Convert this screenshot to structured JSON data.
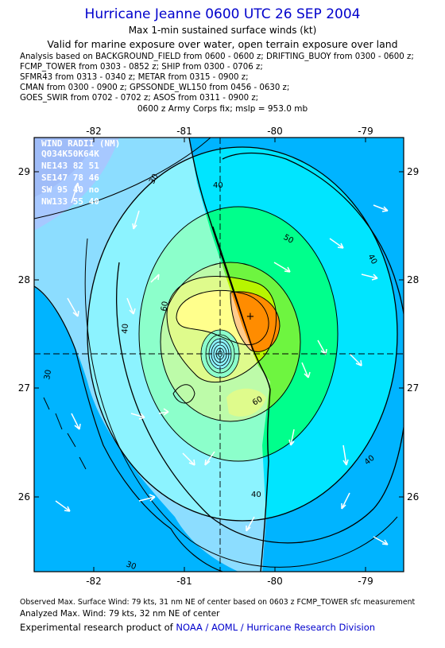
{
  "header": {
    "title": "Hurricane Jeanne 0600 UTC 26 SEP 2004",
    "subtitle": "Max 1-min sustained surface winds (kt)",
    "validity": "Valid for marine exposure over water, open terrain exposure over land"
  },
  "analysis_lines": [
    "Analysis based on  BACKGROUND_FIELD from 0600 - 0600 z;  DRIFTING_BUOY from 0300 - 0600 z;",
    "FCMP_TOWER from 0303 - 0852 z;  SHIP from 0300 - 0706 z;",
    "SFMR43 from 0313 - 0340 z;  METAR from 0315 - 0900 z;",
    "CMAN from 0300 - 0900 z;  GPSSONDE_WL150 from 0456 - 0630 z;",
    "GOES_SWIR from 0702 - 0702 z;  ASOS from 0311 - 0900 z;"
  ],
  "fix_line": "0600 z Army Corps fix; mslp = 953.0 mb",
  "map": {
    "lon_labels": [
      "-82",
      "-81",
      "-80",
      "-79"
    ],
    "lat_labels": [
      "29",
      "28",
      "27",
      "26"
    ],
    "contour_labels": [
      "30",
      "30",
      "30",
      "40",
      "40",
      "40",
      "40",
      "40",
      "50",
      "60",
      "60"
    ],
    "wind_radii": {
      "title": "WIND RADII (NM)",
      "header": "Q034K50K64K",
      "rows": [
        "NE143 82 51",
        "SE147 78 46",
        "SW 95 40 no",
        "NW133 55 40"
      ]
    },
    "center_marker": "+",
    "colors": {
      "land": "#ffffff",
      "c20": "#3d86ff",
      "c30": "#00b4ff",
      "c40": "#00e5ff",
      "c50": "#00ff8c",
      "c60": "#b8f500",
      "c70": "#ffff00",
      "c75": "#ff8c00"
    }
  },
  "footer": {
    "observed": "Observed Max. Surface Wind: 79 kts, 31 nm NE of center based on 0603 z FCMP_TOWER sfc measurement",
    "analyzed": "Analyzed Max. Wind: 79 kts, 32 nm NE of center",
    "product_prefix": "Experimental research product of",
    "product_org": "NOAA / AOML / Hurricane Research Division"
  }
}
